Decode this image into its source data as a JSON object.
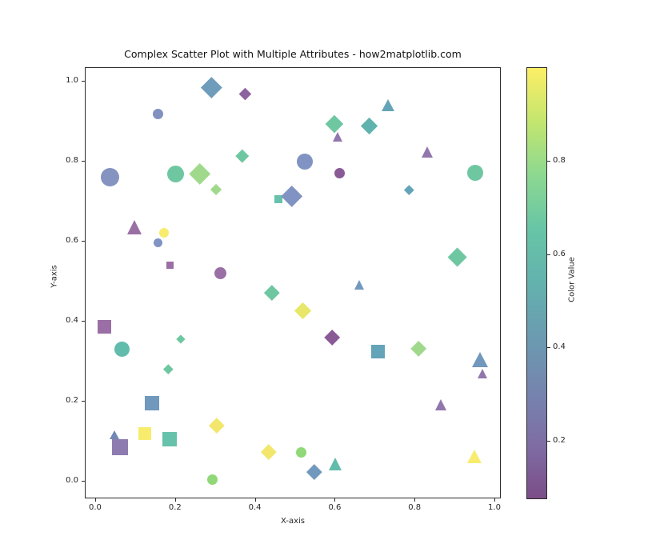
{
  "figure": {
    "title": "Complex Scatter Plot with Multiple Attributes - how2matplotlib.com",
    "xlabel": "X-axis",
    "ylabel": "Y-axis"
  },
  "axes": {
    "x_tick_labels": [
      "0.0",
      "0.2",
      "0.4",
      "0.6",
      "0.8",
      "1.0"
    ],
    "x_tick_values": [
      0.0,
      0.2,
      0.4,
      0.6,
      0.8,
      1.0
    ],
    "y_tick_labels": [
      "0.0",
      "0.2",
      "0.4",
      "0.6",
      "0.8",
      "1.0"
    ],
    "y_tick_values": [
      0.0,
      0.2,
      0.4,
      0.6,
      0.8,
      1.0
    ],
    "xlim": [
      -0.026,
      1.016
    ],
    "ylim": [
      -0.044,
      1.034
    ],
    "frame_color": "#2b2b2b"
  },
  "colorbar": {
    "label": "Color Value",
    "tick_labels": [
      "0.2",
      "0.4",
      "0.6",
      "0.8"
    ],
    "tick_values": [
      0.2,
      0.4,
      0.6,
      0.8
    ],
    "vmin": 0.075,
    "vmax": 1.0,
    "gradient_bottom_to_top": [
      "#7c4d87",
      "#7e6da4",
      "#7585ae",
      "#6b9bb0",
      "#63b2ae",
      "#67c5a6",
      "#8cd891",
      "#c3e66f",
      "#fdee66"
    ]
  },
  "chart_data": {
    "type": "scatter",
    "title": "Complex Scatter Plot with Multiple Attributes - how2matplotlib.com",
    "xlabel": "X-axis",
    "ylabel": "Y-axis",
    "xlim": [
      -0.026,
      1.016
    ],
    "ylim": [
      -0.044,
      1.034
    ],
    "grid": false,
    "legend": "none",
    "colormap": "viridis",
    "marker_shapes_used": [
      "circle",
      "square",
      "triangle",
      "diamond"
    ],
    "points": [
      {
        "x": 0.289,
        "y": 0.985,
        "marker": "diamond",
        "size": 26,
        "color": "#6f9cba"
      },
      {
        "x": 0.374,
        "y": 0.969,
        "marker": "diamond",
        "size": 15,
        "color": "#8d62a0"
      },
      {
        "x": 0.156,
        "y": 0.92,
        "marker": "circle",
        "size": 13,
        "color": "#8191c0"
      },
      {
        "x": 0.366,
        "y": 0.815,
        "marker": "diamond",
        "size": 16,
        "color": "#6fc7a1"
      },
      {
        "x": 0.036,
        "y": 0.762,
        "marker": "circle",
        "size": 23,
        "color": "#8593c1"
      },
      {
        "x": 0.2,
        "y": 0.769,
        "marker": "circle",
        "size": 21,
        "color": "#6fc7a1"
      },
      {
        "x": 0.259,
        "y": 0.769,
        "marker": "diamond",
        "size": 27,
        "color": "#a0d98c"
      },
      {
        "x": 0.3,
        "y": 0.729,
        "marker": "diamond",
        "size": 14,
        "color": "#a0d98c"
      },
      {
        "x": 0.456,
        "y": 0.706,
        "marker": "square",
        "size": 10,
        "color": "#66c2ab"
      },
      {
        "x": 0.49,
        "y": 0.713,
        "marker": "diamond",
        "size": 27,
        "color": "#8093c2"
      },
      {
        "x": 0.731,
        "y": 0.939,
        "marker": "triangle",
        "size": 16,
        "color": "#64a4b8"
      },
      {
        "x": 0.598,
        "y": 0.894,
        "marker": "diamond",
        "size": 22,
        "color": "#6fc7a1"
      },
      {
        "x": 0.685,
        "y": 0.889,
        "marker": "diamond",
        "size": 21,
        "color": "#60b2ae"
      },
      {
        "x": 0.606,
        "y": 0.86,
        "marker": "triangle",
        "size": 13,
        "color": "#9177ad"
      },
      {
        "x": 0.831,
        "y": 0.823,
        "marker": "triangle",
        "size": 15,
        "color": "#9177ad"
      },
      {
        "x": 0.524,
        "y": 0.801,
        "marker": "circle",
        "size": 20,
        "color": "#8093c2"
      },
      {
        "x": 0.611,
        "y": 0.771,
        "marker": "circle",
        "size": 13,
        "color": "#8a5a96"
      },
      {
        "x": 0.949,
        "y": 0.772,
        "marker": "circle",
        "size": 20,
        "color": "#6fc7a1"
      },
      {
        "x": 0.784,
        "y": 0.729,
        "marker": "diamond",
        "size": 12,
        "color": "#64a4b8"
      },
      {
        "x": 0.098,
        "y": 0.634,
        "marker": "triangle",
        "size": 19,
        "color": "#9a6fa5"
      },
      {
        "x": 0.171,
        "y": 0.623,
        "marker": "circle",
        "size": 12,
        "color": "#f7ec6e"
      },
      {
        "x": 0.156,
        "y": 0.597,
        "marker": "circle",
        "size": 11,
        "color": "#8093c2"
      },
      {
        "x": 0.185,
        "y": 0.541,
        "marker": "square",
        "size": 9,
        "color": "#9a6fa5"
      },
      {
        "x": 0.311,
        "y": 0.521,
        "marker": "circle",
        "size": 15,
        "color": "#9a6fa5"
      },
      {
        "x": 0.441,
        "y": 0.472,
        "marker": "diamond",
        "size": 19,
        "color": "#6fc7a1"
      },
      {
        "x": 0.021,
        "y": 0.387,
        "marker": "square",
        "size": 17,
        "color": "#9a6fa5"
      },
      {
        "x": 0.213,
        "y": 0.357,
        "marker": "diamond",
        "size": 11,
        "color": "#6fc7a1"
      },
      {
        "x": 0.065,
        "y": 0.332,
        "marker": "circle",
        "size": 19,
        "color": "#62bcab"
      },
      {
        "x": 0.906,
        "y": 0.56,
        "marker": "diamond",
        "size": 24,
        "color": "#6fc7a1"
      },
      {
        "x": 0.661,
        "y": 0.491,
        "marker": "triangle",
        "size": 13,
        "color": "#7198bd"
      },
      {
        "x": 0.519,
        "y": 0.427,
        "marker": "diamond",
        "size": 21,
        "color": "#e9e76a"
      },
      {
        "x": 0.591,
        "y": 0.36,
        "marker": "diamond",
        "size": 20,
        "color": "#8a5a96"
      },
      {
        "x": 0.707,
        "y": 0.325,
        "marker": "square",
        "size": 17,
        "color": "#64a4b8"
      },
      {
        "x": 0.807,
        "y": 0.331,
        "marker": "diamond",
        "size": 20,
        "color": "#a0d98c"
      },
      {
        "x": 0.963,
        "y": 0.302,
        "marker": "triangle",
        "size": 21,
        "color": "#7198bd"
      },
      {
        "x": 0.181,
        "y": 0.281,
        "marker": "diamond",
        "size": 12,
        "color": "#6fc7a1"
      },
      {
        "x": 0.141,
        "y": 0.197,
        "marker": "square",
        "size": 18,
        "color": "#7198bd"
      },
      {
        "x": 0.047,
        "y": 0.115,
        "marker": "triangle",
        "size": 12,
        "color": "#7188b5"
      },
      {
        "x": 0.123,
        "y": 0.12,
        "marker": "square",
        "size": 16,
        "color": "#f7ec6e"
      },
      {
        "x": 0.06,
        "y": 0.087,
        "marker": "square",
        "size": 20,
        "color": "#8e7cb0"
      },
      {
        "x": 0.185,
        "y": 0.107,
        "marker": "square",
        "size": 18,
        "color": "#66c2ab"
      },
      {
        "x": 0.303,
        "y": 0.141,
        "marker": "diamond",
        "size": 19,
        "color": "#f2e76c"
      },
      {
        "x": 0.432,
        "y": 0.075,
        "marker": "diamond",
        "size": 19,
        "color": "#f2e76c"
      },
      {
        "x": 0.291,
        "y": 0.005,
        "marker": "circle",
        "size": 13,
        "color": "#90d878"
      },
      {
        "x": 0.968,
        "y": 0.269,
        "marker": "triangle",
        "size": 13,
        "color": "#9177ad"
      },
      {
        "x": 0.865,
        "y": 0.19,
        "marker": "triangle",
        "size": 15,
        "color": "#9177ad"
      },
      {
        "x": 0.514,
        "y": 0.073,
        "marker": "circle",
        "size": 13,
        "color": "#90d878"
      },
      {
        "x": 0.546,
        "y": 0.024,
        "marker": "diamond",
        "size": 19,
        "color": "#7198bd"
      },
      {
        "x": 0.6,
        "y": 0.042,
        "marker": "triangle",
        "size": 17,
        "color": "#62bcab"
      },
      {
        "x": 0.948,
        "y": 0.061,
        "marker": "triangle",
        "size": 18,
        "color": "#f7ec6e"
      }
    ]
  }
}
